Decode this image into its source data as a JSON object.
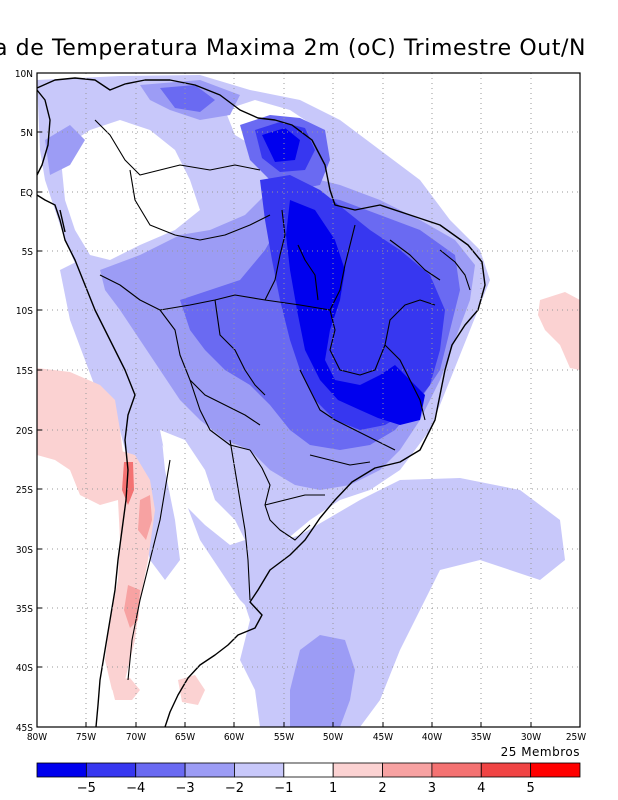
{
  "title": "a de Temperatura Maxima 2m (oC) Trimestre Out/N",
  "map": {
    "lat_labels": [
      "10N",
      "5N",
      "EQ",
      "5S",
      "10S",
      "15S",
      "20S",
      "25S",
      "30S",
      "35S",
      "40S",
      "45S"
    ],
    "lon_labels": [
      "80W",
      "75W",
      "70W",
      "65W",
      "60W",
      "55W",
      "50W",
      "45W",
      "40W",
      "35W",
      "30W",
      "25W"
    ],
    "members": "25 Membros",
    "colors": {
      "neg5": "#0000ee",
      "neg4": "#3737f0",
      "neg3": "#6a6af2",
      "neg2": "#9c9cf5",
      "neg1": "#c8c8fa",
      "zero": "#ffffff",
      "pos1": "#fbd2d2",
      "pos2": "#f7a2a2",
      "pos3": "#f47272",
      "pos4": "#f04444",
      "pos5": "#ff0000"
    }
  },
  "colorbar": {
    "labels": [
      "−5",
      "−4",
      "−3",
      "−2",
      "−1",
      "1",
      "2",
      "3",
      "4",
      "5"
    ],
    "colors": [
      "#0000ee",
      "#3737f0",
      "#6a6af2",
      "#9c9cf5",
      "#c8c8fa",
      "#ffffff",
      "#fbd2d2",
      "#f7a2a2",
      "#f47272",
      "#f04444",
      "#ff0000"
    ]
  }
}
